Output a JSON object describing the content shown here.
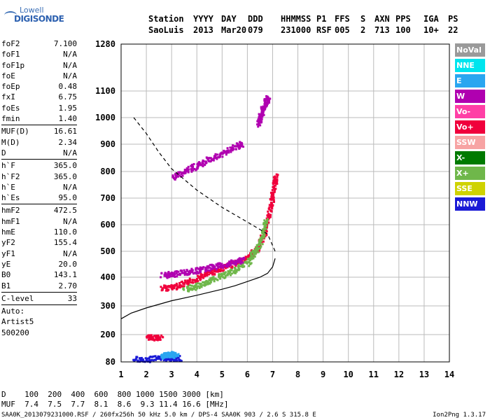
{
  "logo": {
    "line1": "Lowell",
    "line2": "DIGISONDE"
  },
  "header": {
    "row1": [
      "Station",
      "YYYY",
      "DAY",
      "DDD",
      "HHMMSS",
      "P1",
      "FFS",
      "S",
      "AXN",
      "PPS",
      "IGA",
      "PS"
    ],
    "row2": [
      "SaoLuis",
      "2013",
      "Mar20",
      "079",
      "231000",
      "RSF",
      "005",
      "2",
      "713",
      "100",
      "10+",
      "22"
    ]
  },
  "params": {
    "g1": [
      [
        "foF2",
        "7.100"
      ],
      [
        "foF1",
        "N/A"
      ],
      [
        "foF1p",
        "N/A"
      ],
      [
        "foE",
        "N/A"
      ],
      [
        "foEp",
        "0.48"
      ],
      [
        "fxI",
        "6.75"
      ],
      [
        "foEs",
        "1.95"
      ],
      [
        "fmin",
        "1.40"
      ]
    ],
    "g2": [
      [
        "MUF(D)",
        "16.61"
      ],
      [
        "M(D)",
        "2.34"
      ],
      [
        "D",
        "N/A"
      ]
    ],
    "g3": [
      [
        "h`F",
        "365.0"
      ],
      [
        "h`F2",
        "365.0"
      ],
      [
        "h`E",
        "N/A"
      ],
      [
        "h`Es",
        "95.0"
      ]
    ],
    "g4": [
      [
        "hmF2",
        "472.5"
      ],
      [
        "hmF1",
        "N/A"
      ],
      [
        "hmE",
        "110.0"
      ],
      [
        "yF2",
        "155.4"
      ],
      [
        "yF1",
        "N/A"
      ],
      [
        "yE",
        "20.0"
      ],
      [
        "B0",
        "143.1"
      ],
      [
        "B1",
        "2.70"
      ]
    ],
    "g5": [
      [
        "C-level",
        "33"
      ]
    ],
    "auto": [
      "Auto:",
      "Artist5",
      "500200"
    ]
  },
  "legend": [
    {
      "label": "NoVal",
      "color": "#9a9a9a"
    },
    {
      "label": "NNE",
      "color": "#00e5ee"
    },
    {
      "label": "E",
      "color": "#2aa6f0"
    },
    {
      "label": "W",
      "color": "#b000b0"
    },
    {
      "label": "Vo-",
      "color": "#ff3fa6"
    },
    {
      "label": "Vo+",
      "color": "#f0003c"
    },
    {
      "label": "SSW",
      "color": "#f7a3a3"
    },
    {
      "label": "X-",
      "color": "#007a00"
    },
    {
      "label": "X+",
      "color": "#6fb74a"
    },
    {
      "label": "SSE",
      "color": "#cfd200"
    },
    {
      "label": "NNW",
      "color": "#1a1ad6"
    }
  ],
  "footer": {
    "line1": "D    100  200  400  600  800 1000 1500 3000 [km]",
    "line2": "MUF  7.4  7.5  7.7  8.1  8.6  9.3 11.4 16.6 [MHz]",
    "line3": "SAA0K_2013079231000.RSF / 260fx256h 50 kHz 5.0 km / DPS-4 SAA0K 903 / 2.6 S 315.8 E",
    "version": "Ion2Png 1.3.17"
  },
  "chart_data": {
    "type": "scatter",
    "xlim": [
      1,
      14
    ],
    "ylim": [
      80,
      1280
    ],
    "xticks": [
      1,
      2,
      3,
      4,
      5,
      6,
      7,
      8,
      9,
      10,
      11,
      12,
      13,
      14
    ],
    "yticks": [
      80,
      200,
      300,
      400,
      500,
      600,
      700,
      800,
      900,
      1000,
      1100,
      1280
    ],
    "grid": true,
    "profile_line": [
      [
        1,
        255
      ],
      [
        1.4,
        275
      ],
      [
        2,
        293
      ],
      [
        3,
        318
      ],
      [
        4,
        337
      ],
      [
        5,
        358
      ],
      [
        5.5,
        370
      ],
      [
        6,
        385
      ],
      [
        6.5,
        400
      ],
      [
        6.8,
        415
      ],
      [
        7.0,
        440
      ],
      [
        7.1,
        472.5
      ]
    ],
    "dashed_line": [
      [
        1.5,
        1000
      ],
      [
        2,
        940
      ],
      [
        2.5,
        870
      ],
      [
        3,
        810
      ],
      [
        4,
        730
      ],
      [
        5,
        665
      ],
      [
        6,
        610
      ],
      [
        6.8,
        565
      ],
      [
        7.1,
        500
      ]
    ],
    "traces": [
      {
        "name": "O trace F2",
        "color": "#f0003c",
        "points": [
          [
            2.6,
            365
          ],
          [
            3,
            368
          ],
          [
            3.5,
            380
          ],
          [
            4,
            400
          ],
          [
            4.5,
            420
          ],
          [
            5,
            440
          ],
          [
            5.5,
            458
          ],
          [
            6,
            480
          ],
          [
            6.3,
            505
          ],
          [
            6.5,
            540
          ],
          [
            6.7,
            590
          ],
          [
            6.85,
            650
          ],
          [
            6.95,
            700
          ],
          [
            7.05,
            760
          ],
          [
            7.1,
            790
          ]
        ]
      },
      {
        "name": "X trace F2",
        "color": "#6fb74a",
        "points": [
          [
            3.5,
            360
          ],
          [
            4,
            372
          ],
          [
            4.5,
            390
          ],
          [
            5,
            410
          ],
          [
            5.5,
            432
          ],
          [
            6,
            460
          ],
          [
            6.2,
            490
          ],
          [
            6.4,
            520
          ],
          [
            6.6,
            570
          ],
          [
            6.7,
            620
          ]
        ]
      },
      {
        "name": "W F2",
        "color": "#b000b0",
        "points": [
          [
            2.6,
            410
          ],
          [
            3,
            415
          ],
          [
            3.5,
            422
          ],
          [
            4,
            430
          ],
          [
            4.5,
            440
          ],
          [
            5,
            450
          ],
          [
            5.5,
            460
          ],
          [
            5.8,
            470
          ]
        ]
      },
      {
        "name": "W 2F",
        "color": "#b000b0",
        "points": [
          [
            3,
            780
          ],
          [
            3.5,
            805
          ],
          [
            4,
            825
          ],
          [
            4.5,
            850
          ],
          [
            5,
            870
          ],
          [
            5.5,
            895
          ],
          [
            5.8,
            905
          ]
        ]
      },
      {
        "name": "W 3F",
        "color": "#b000b0",
        "points": [
          [
            6.4,
            980
          ],
          [
            6.5,
            1010
          ],
          [
            6.6,
            1040
          ],
          [
            6.7,
            1060
          ],
          [
            6.8,
            1080
          ]
        ]
      },
      {
        "name": "Es",
        "color": "#1a1ad6",
        "points": [
          [
            1.5,
            95
          ],
          [
            2,
            95
          ],
          [
            2.5,
            100
          ],
          [
            3,
            100
          ],
          [
            3.3,
            100
          ]
        ]
      },
      {
        "name": "Es X",
        "color": "#2aa6f0",
        "points": [
          [
            2.6,
            110
          ],
          [
            2.8,
            115
          ],
          [
            3,
            118
          ],
          [
            3.2,
            112
          ]
        ]
      },
      {
        "name": "Es2",
        "color": "#f0003c",
        "points": [
          [
            2,
            190
          ],
          [
            2.3,
            190
          ],
          [
            2.6,
            190
          ]
        ]
      }
    ]
  }
}
